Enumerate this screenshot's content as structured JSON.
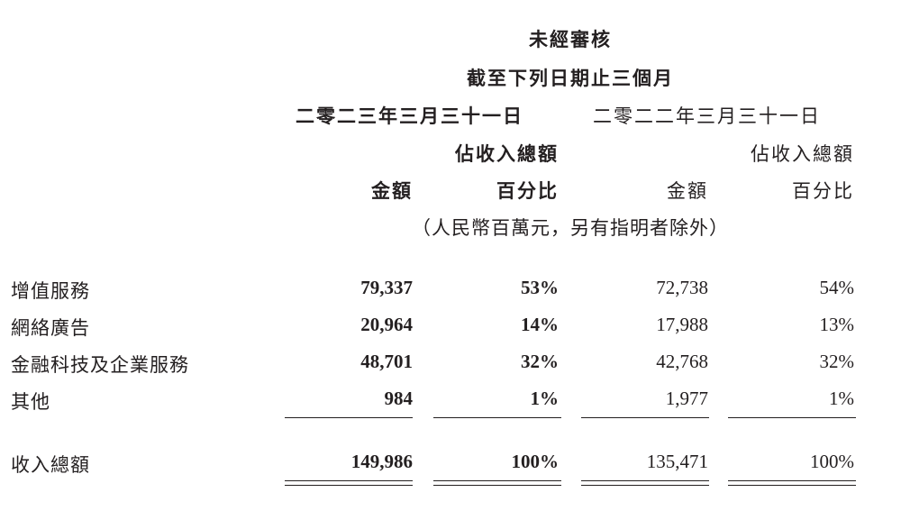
{
  "header": {
    "line1": "未經審核",
    "line2": "截至下列日期止三個月",
    "period_2023": "二零二三年三月三十一日",
    "period_2022": "二零二二年三月三十一日",
    "pct_of_total_2023": "佔收入總額",
    "pct_of_total_2022": "佔收入總額",
    "amount_2023": "金額",
    "percent_2023": "百分比",
    "amount_2022": "金額",
    "percent_2022": "百分比",
    "unit_note": "（人民幣百萬元，另有指明者除外）"
  },
  "rows": [
    {
      "label": "增值服務",
      "amount_2023": "79,337",
      "pct_2023": "53%",
      "amount_2022": "72,738",
      "pct_2022": "54%"
    },
    {
      "label": "網絡廣告",
      "amount_2023": "20,964",
      "pct_2023": "14%",
      "amount_2022": "17,988",
      "pct_2022": "13%"
    },
    {
      "label": "金融科技及企業服務",
      "amount_2023": "48,701",
      "pct_2023": "32%",
      "amount_2022": "42,768",
      "pct_2022": "32%"
    },
    {
      "label": "其他",
      "amount_2023": "984",
      "pct_2023": "1%",
      "amount_2022": "1,977",
      "pct_2022": "1%"
    }
  ],
  "total": {
    "label": "收入總額",
    "amount_2023": "149,986",
    "pct_2023": "100%",
    "amount_2022": "135,471",
    "pct_2022": "100%"
  }
}
